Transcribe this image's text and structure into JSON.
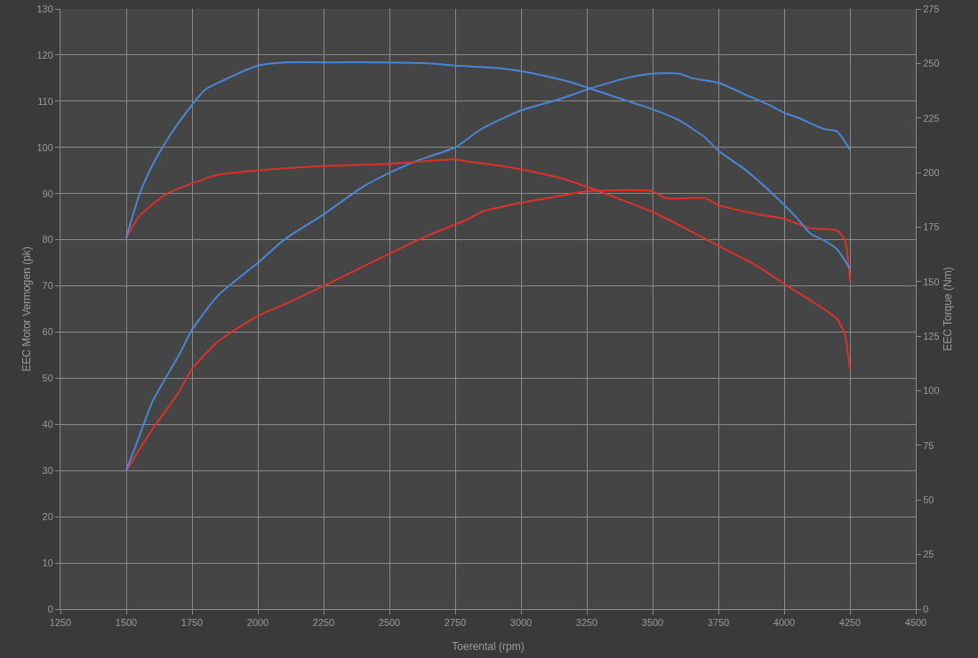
{
  "chart_data": {
    "type": "line",
    "xlabel": "Toerental (rpm)",
    "ylabel": "EEC Motor Vermogen (pk)",
    "y2label": "EEC Torque (Nm)",
    "xlim": [
      1250,
      4500
    ],
    "xticks": [
      1250,
      1500,
      1750,
      2000,
      2250,
      2500,
      2750,
      3000,
      3250,
      3500,
      3750,
      4000,
      4250,
      4500
    ],
    "ylim": [
      0,
      130
    ],
    "yticks": [
      0,
      10,
      20,
      30,
      40,
      50,
      60,
      70,
      80,
      90,
      100,
      110,
      120,
      130
    ],
    "y2lim": [
      0,
      275
    ],
    "y2ticks": [
      0,
      25,
      50,
      75,
      100,
      125,
      150,
      175,
      200,
      225,
      250,
      275
    ],
    "grid": true,
    "marker": "none",
    "line_style": "solid",
    "series": [
      {
        "color": "#e0302a",
        "x": [
          1500,
          1600,
          1700,
          1750,
          1850,
          2000,
          2100,
          2250,
          2500,
          2650,
          2800,
          2850,
          3000,
          3150,
          3250,
          3500,
          3550,
          3700,
          3750,
          3900,
          4000,
          4100,
          4200,
          4230,
          4250
        ],
        "values": [
          30,
          39,
          47,
          52,
          58,
          63.5,
          66,
          70,
          77,
          81,
          84.5,
          86,
          88,
          89.5,
          90.5,
          90.5,
          89,
          89,
          87.5,
          85.5,
          84.5,
          82.5,
          82,
          80,
          71
        ]
      },
      {
        "color": "#4a86d6",
        "x": [
          1500,
          1550,
          1600,
          1700,
          1750,
          1850,
          2000,
          2100,
          2250,
          2400,
          2500,
          2600,
          2750,
          2850,
          3000,
          3150,
          3250,
          3400,
          3500,
          3600,
          3650,
          3750,
          3850,
          3950,
          4000,
          4050,
          4150,
          4200,
          4250
        ],
        "values": [
          30,
          37.5,
          45,
          55,
          60.5,
          68,
          75,
          80,
          85.5,
          91.5,
          94.5,
          97,
          100,
          104,
          108,
          110.5,
          112.5,
          115,
          116,
          116,
          115,
          114,
          111.5,
          109,
          107.5,
          106.5,
          104,
          103.5,
          99.5
        ]
      },
      {
        "color": "#e0302a",
        "axis": "y2",
        "x": [
          1500,
          1550,
          1650,
          1750,
          1850,
          2000,
          2250,
          2500,
          2750,
          2800,
          2900,
          3000,
          3150,
          3250,
          3350,
          3500,
          3600,
          3750,
          3900,
          4000,
          4100,
          4200,
          4230,
          4250
        ],
        "values": [
          170,
          180,
          190,
          195,
          199,
          201,
          203,
          204,
          206,
          205,
          203.5,
          201.5,
          197.5,
          193.5,
          189,
          182,
          176,
          166.5,
          157,
          149,
          141.5,
          133,
          126,
          110
        ]
      },
      {
        "color": "#4a86d6",
        "axis": "y2",
        "x": [
          1500,
          1550,
          1600,
          1650,
          1700,
          1750,
          1800,
          1900,
          2000,
          2100,
          2250,
          2500,
          2650,
          2750,
          2900,
          3000,
          3100,
          3200,
          3300,
          3400,
          3500,
          3600,
          3700,
          3750,
          3850,
          3950,
          4050,
          4100,
          4150,
          4200,
          4250
        ],
        "values": [
          170,
          190,
          203.5,
          214,
          223,
          231,
          238,
          244,
          249,
          250.5,
          250.5,
          250.5,
          250,
          249,
          248,
          246.5,
          244,
          241,
          237,
          233,
          229,
          224,
          216,
          210,
          201.5,
          191,
          179,
          172,
          169,
          165,
          156
        ]
      }
    ]
  }
}
